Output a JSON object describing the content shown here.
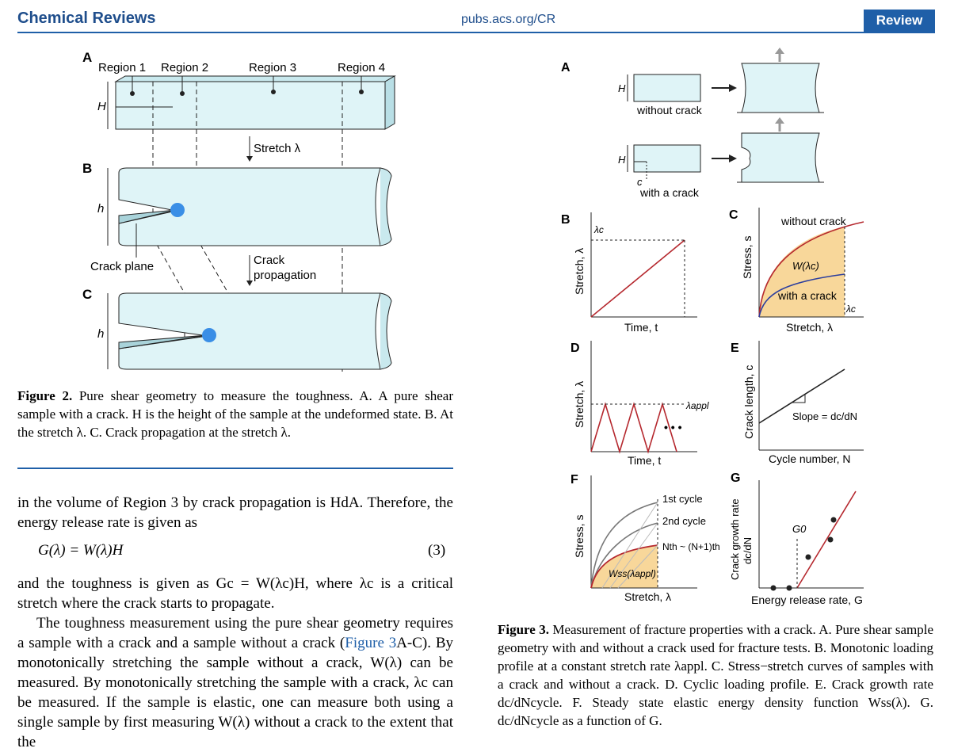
{
  "header": {
    "journal": "Chemical Reviews",
    "url": "pubs.acs.org/CR",
    "badge": "Review"
  },
  "fig2": {
    "panels": {
      "a": "A",
      "b": "B",
      "c": "C"
    },
    "regions": [
      "Region 1",
      "Region 2",
      "Region 3",
      "Region 4"
    ],
    "H": "H",
    "h": "h",
    "stretch": "Stretch λ",
    "crack_plane": "Crack plane",
    "crack_prop_1": "Crack",
    "crack_prop_2": "propagation",
    "caption": {
      "label": "Figure 2.",
      "text": "Pure shear geometry to measure the toughness. A. A pure shear sample with a crack. H is the height of the sample at the undeformed state. B. At the stretch λ. C. Crack propagation at the stretch λ."
    }
  },
  "fig3": {
    "panels": {
      "a": "A",
      "b": "B",
      "c": "C",
      "d": "D",
      "e": "E",
      "f": "F",
      "g": "G"
    },
    "a": {
      "without": "without crack",
      "with": "with a crack",
      "H": "H",
      "c": "c"
    },
    "b": {
      "ylabel": "Stretch, λ",
      "xlabel": "Time, t",
      "lambda_c": "λc"
    },
    "c": {
      "ylabel": "Stress, s",
      "xlabel": "Stretch, λ",
      "without": "without crack",
      "with": "with a crack",
      "w": "W(λc)",
      "lambda_c": "λc"
    },
    "d": {
      "ylabel": "Stretch, λ",
      "xlabel": "Time, t",
      "lambda_appl": "λappl",
      "dots": "• • •"
    },
    "e": {
      "ylabel": "Crack length, c",
      "xlabel": "Cycle number, N",
      "slope": "Slope = dc/dN"
    },
    "f": {
      "ylabel": "Stress, s",
      "xlabel": "Stretch, λ",
      "c1": "1st cycle",
      "c2": "2nd cycle",
      "cn": "Nth ~ (N+1)th",
      "wss": "Wss(λappl)"
    },
    "g": {
      "ylabel": "Crack growth rate",
      "ylabel2": "dc/dN",
      "xlabel": "Energy release rate, G",
      "g0": "G0"
    },
    "caption": {
      "label": "Figure 3.",
      "text": "Measurement of fracture properties with a crack. A. Pure shear sample geometry with and without a crack used for fracture tests. B. Monotonic loading profile at a constant stretch rate λappl. C. Stress−stretch curves of samples with a crack and without a crack. D. Cyclic loading profile. E. Crack growth rate dc/dNcycle. F. Steady state elastic energy density function Wss(λ). G. dc/dNcycle as a function of G."
    }
  },
  "body": {
    "p1": "in the volume of Region 3 by crack propagation is HdA. Therefore, the energy release rate is given as",
    "eq": "G(λ) = W(λ)H",
    "eqnum": "(3)",
    "p2": "and the toughness is given as Gc = W(λc)H, where λc is a critical stretch where the crack starts to propagate.",
    "p3_a": "The toughness measurement using the pure shear geometry requires a sample with a crack and a sample without a crack (",
    "p3_link": "Figure 3",
    "p3_b": "A-C). By monotonically stretching the sample without a crack, W(λ) can be measured. By monotonically stretching the sample with a crack, λc can be measured. If the sample is elastic, one can measure both using a single sample by first measuring W(λ) without a crack to the extent that the"
  },
  "colors": {
    "brand": "#1f4e8c",
    "sample_fill": "#dff4f7",
    "crack_tip": "#3a8ee6",
    "curve_red": "#b5282e",
    "curve_blue": "#2c3e9e",
    "area_fill": "#f8d79a"
  }
}
